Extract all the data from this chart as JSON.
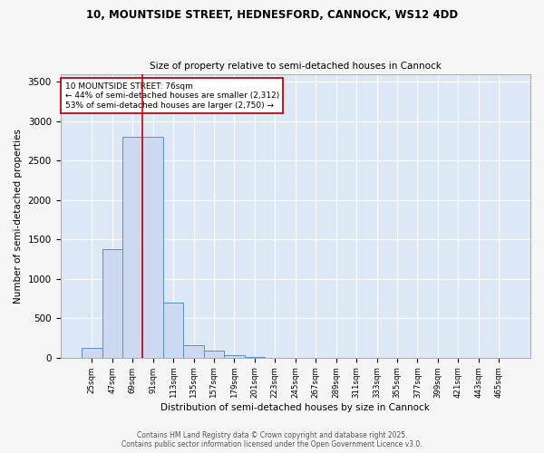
{
  "title_line1": "10, MOUNTSIDE STREET, HEDNESFORD, CANNOCK, WS12 4DD",
  "title_line2": "Size of property relative to semi-detached houses in Cannock",
  "xlabel": "Distribution of semi-detached houses by size in Cannock",
  "ylabel": "Number of semi-detached properties",
  "bin_labels": [
    "25sqm",
    "47sqm",
    "69sqm",
    "91sqm",
    "113sqm",
    "135sqm",
    "157sqm",
    "179sqm",
    "201sqm",
    "223sqm",
    "245sqm",
    "267sqm",
    "289sqm",
    "311sqm",
    "333sqm",
    "355sqm",
    "377sqm",
    "399sqm",
    "421sqm",
    "443sqm",
    "465sqm"
  ],
  "bin_values": [
    130,
    1380,
    2800,
    2800,
    700,
    155,
    90,
    30,
    10,
    0,
    0,
    0,
    0,
    0,
    0,
    0,
    0,
    0,
    0,
    0,
    0
  ],
  "bar_color": "#ccd9f0",
  "bar_edge_color": "#5b8ec4",
  "vline_color": "#cc0000",
  "vline_pos": 2.5,
  "annotation_text": "10 MOUNTSIDE STREET: 76sqm\n← 44% of semi-detached houses are smaller (2,312)\n53% of semi-detached houses are larger (2,750) →",
  "ylim": [
    0,
    3600
  ],
  "plot_bg_color": "#dce8f5",
  "fig_bg_color": "#f5f5f5",
  "grid_color": "#ffffff",
  "footer_line1": "Contains HM Land Registry data © Crown copyright and database right 2025.",
  "footer_line2": "Contains public sector information licensed under the Open Government Licence v3.0."
}
